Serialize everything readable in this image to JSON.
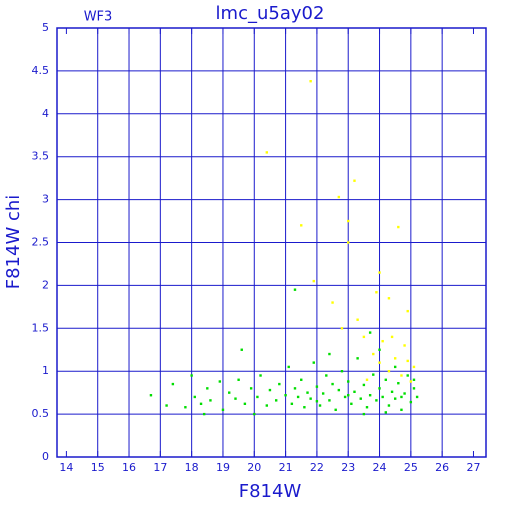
{
  "chart_data": {
    "type": "scatter",
    "title": "lmc_u5ay02",
    "subtitle": "WF3",
    "x_label": "F814W",
    "y_label": "F814W chi",
    "xlim": [
      13.7,
      27.4
    ],
    "ylim": [
      0,
      5
    ],
    "xticks": [
      14,
      15,
      16,
      17,
      18,
      19,
      20,
      21,
      22,
      23,
      24,
      25,
      26,
      27
    ],
    "yticks": [
      0,
      0.5,
      1,
      1.5,
      2,
      2.5,
      3,
      3.5,
      4,
      4.5,
      5
    ],
    "grid": true,
    "series": [
      {
        "color": "#00dd00",
        "x": [
          16.7,
          17.2,
          17.4,
          17.8,
          18.0,
          18.1,
          18.3,
          18.5,
          18.6,
          18.9,
          19.0,
          19.2,
          19.4,
          19.5,
          19.7,
          19.9,
          20.1,
          20.2,
          20.4,
          20.5,
          20.7,
          20.8,
          21.0,
          21.1,
          21.2,
          21.3,
          21.4,
          21.5,
          21.6,
          21.7,
          21.8,
          21.9,
          22.0,
          22.1,
          22.2,
          22.3,
          22.4,
          22.5,
          22.6,
          22.7,
          22.8,
          22.9,
          23.0,
          23.1,
          23.2,
          23.3,
          23.4,
          23.5,
          23.6,
          23.7,
          23.8,
          23.9,
          24.0,
          24.0,
          24.1,
          24.2,
          24.3,
          24.4,
          24.5,
          24.5,
          24.6,
          24.7,
          24.8,
          24.9,
          25.0,
          25.1,
          25.2,
          21.3,
          19.6,
          23.7,
          22.4,
          20.0,
          23.5,
          24.2,
          18.4,
          22.0,
          23.0,
          24.7,
          25.1
        ],
        "values": [
          0.72,
          0.6,
          0.85,
          0.58,
          0.95,
          0.7,
          0.62,
          0.8,
          0.66,
          0.88,
          0.55,
          0.75,
          0.68,
          0.9,
          0.62,
          0.8,
          0.7,
          0.95,
          0.6,
          0.78,
          0.66,
          0.85,
          0.72,
          1.05,
          0.62,
          0.8,
          0.7,
          0.9,
          0.58,
          0.75,
          0.68,
          1.1,
          0.82,
          0.6,
          0.74,
          0.95,
          0.66,
          0.85,
          0.55,
          0.78,
          1.0,
          0.7,
          0.88,
          0.62,
          0.76,
          1.15,
          0.68,
          0.84,
          0.58,
          0.72,
          0.96,
          0.66,
          0.8,
          1.25,
          0.7,
          0.9,
          0.6,
          0.76,
          1.05,
          0.68,
          0.86,
          0.55,
          0.74,
          0.95,
          0.64,
          0.8,
          0.7,
          1.95,
          1.25,
          1.45,
          1.2,
          0.5,
          0.5,
          0.52,
          0.5,
          0.65,
          0.72,
          0.7,
          0.9
        ]
      },
      {
        "color": "#ffff00",
        "x": [
          21.8,
          20.4,
          23.2,
          22.7,
          23.0,
          23.0,
          24.6,
          21.9,
          24.0,
          22.5,
          23.9,
          24.3,
          23.3,
          24.9,
          23.5,
          24.1,
          24.8,
          23.8,
          24.5,
          24.9,
          25.1,
          24.3,
          24.7,
          23.6,
          24.0,
          25.0,
          22.8,
          24.4,
          21.5
        ],
        "values": [
          4.38,
          3.55,
          3.22,
          3.03,
          2.75,
          2.5,
          2.68,
          2.05,
          2.15,
          1.8,
          1.92,
          1.85,
          1.6,
          1.7,
          1.4,
          1.35,
          1.3,
          1.2,
          1.15,
          1.12,
          1.05,
          1.0,
          0.95,
          0.9,
          1.1,
          0.88,
          1.5,
          1.4,
          2.7
        ]
      }
    ]
  }
}
